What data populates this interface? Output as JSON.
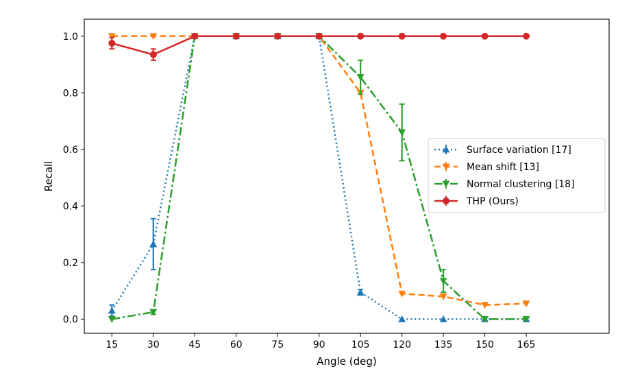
{
  "chart_data": {
    "type": "line",
    "xlabel": "Angle (deg)",
    "ylabel": "Recall",
    "x": [
      15,
      30,
      45,
      60,
      75,
      90,
      105,
      120,
      135,
      150,
      165
    ],
    "xticks": [
      "15",
      "30",
      "45",
      "60",
      "75",
      "90",
      "105",
      "120",
      "135",
      "150",
      "165"
    ],
    "xlim": [
      5,
      195
    ],
    "ylim": [
      -0.05,
      1.06
    ],
    "yticks": [
      "0.0",
      "0.2",
      "0.4",
      "0.6",
      "0.8",
      "1.0"
    ],
    "grid": false,
    "legend_position": "center-right",
    "series": [
      {
        "name": "Surface variation [17]",
        "color": "#1f77b4",
        "linestyle": "dotted",
        "marker": "triangle-up",
        "values": [
          0.03,
          0.265,
          1.0,
          1.0,
          1.0,
          1.0,
          0.095,
          0.0,
          0.0,
          0.0,
          0.0
        ],
        "errors": [
          0.02,
          0.09,
          0,
          0,
          0,
          0,
          0.01,
          0,
          0,
          0,
          0
        ]
      },
      {
        "name": "Mean shift [13]",
        "color": "#ff7f0e",
        "linestyle": "dashed",
        "marker": "triangle-down",
        "values": [
          1.0,
          1.0,
          1.0,
          1.0,
          1.0,
          1.0,
          0.8,
          0.09,
          0.08,
          0.05,
          0.055
        ],
        "errors": [
          0,
          0,
          0,
          0,
          0,
          0,
          0,
          0,
          0,
          0,
          0
        ]
      },
      {
        "name": "Normal clustering [18]",
        "color": "#2ca02c",
        "linestyle": "dashdot",
        "marker": "triangle-down",
        "values": [
          0.0,
          0.025,
          1.0,
          1.0,
          1.0,
          1.0,
          0.855,
          0.66,
          0.135,
          0.0,
          0.0
        ],
        "errors": [
          0,
          0.008,
          0,
          0,
          0,
          0,
          0.06,
          0.1,
          0.04,
          0,
          0
        ]
      },
      {
        "name": "THP (Ours)",
        "color": "#d62728",
        "linestyle": "solid",
        "marker": "circle",
        "values": [
          0.975,
          0.935,
          1.0,
          1.0,
          1.0,
          1.0,
          1.0,
          1.0,
          1.0,
          1.0,
          1.0
        ],
        "errors": [
          0.02,
          0.02,
          0,
          0,
          0,
          0,
          0,
          0,
          0,
          0,
          0
        ]
      }
    ]
  }
}
